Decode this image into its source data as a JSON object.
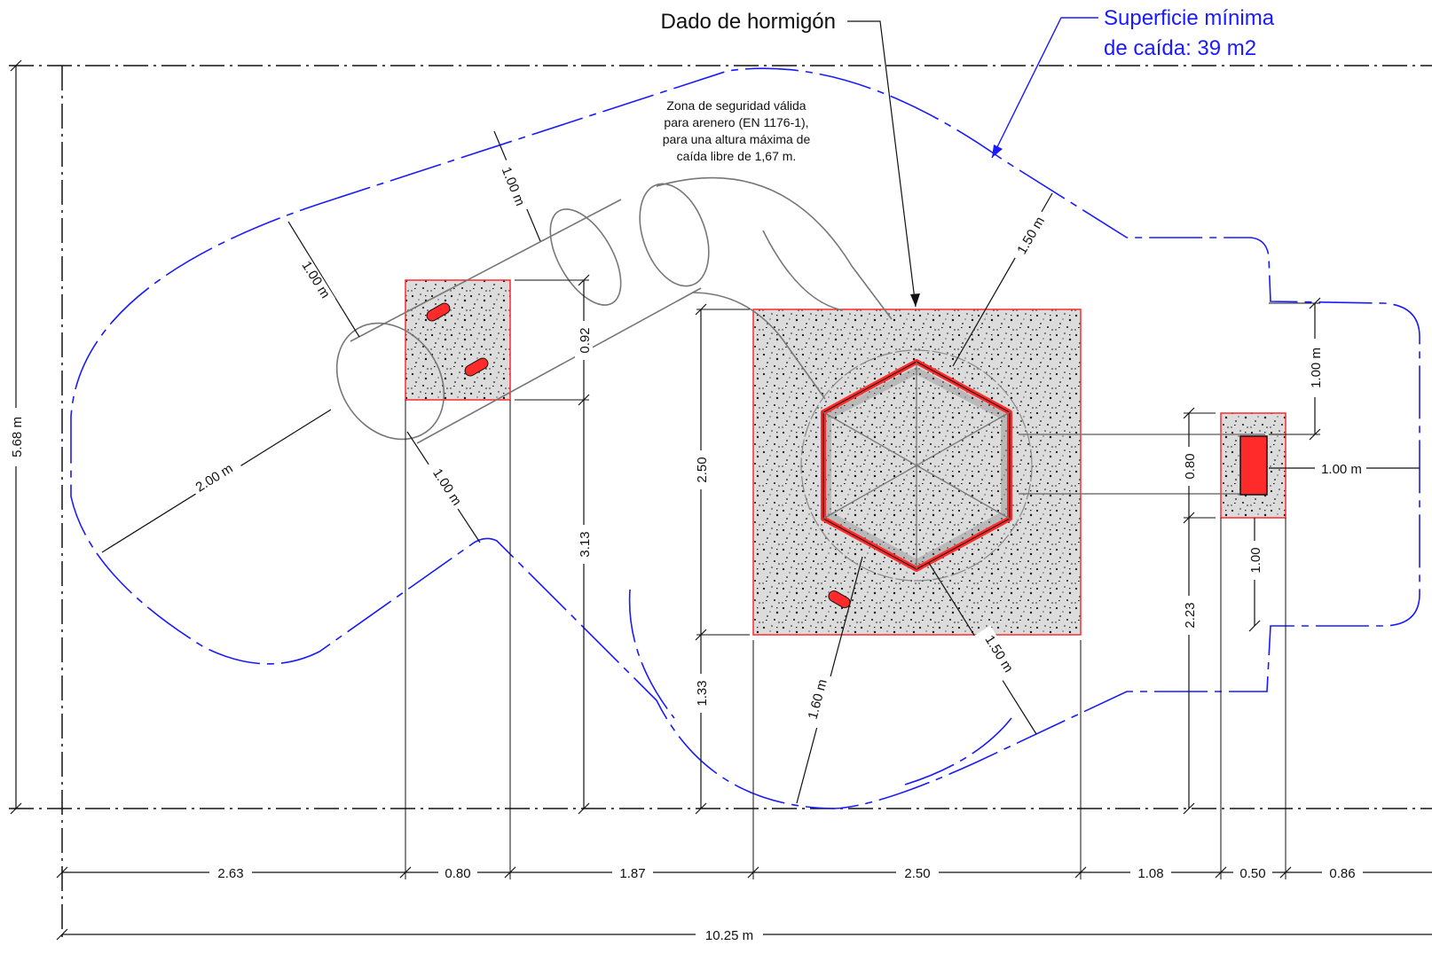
{
  "callouts": {
    "concrete_base": "Dado de hormigón",
    "fall_surface_line1": "Superficie mínima",
    "fall_surface_line2": "de caída: 39 m2"
  },
  "note": {
    "line1": "Zona de seguridad válida",
    "line2": "para arenero (EN 1176-1),",
    "line3": "para una altura máxima de",
    "line4": "caída libre de 1,67 m."
  },
  "dims": {
    "overall_width": "10.25 m",
    "overall_height": "5.68 m",
    "seg_2_63": "2.63",
    "seg_0_80": "0.80",
    "seg_1_87": "1.87",
    "seg_2_50": "2.50",
    "seg_1_08": "1.08",
    "seg_0_50": "0.50",
    "seg_0_86": "0.86",
    "v_0_92": "0.92",
    "v_3_13": "3.13",
    "v_2_50": "2.50",
    "v_1_33": "1.33",
    "v_0_80": "0.80",
    "v_2_23": "2.23",
    "v_1_00": "1.00",
    "r_1_00_top": "1.00 m",
    "r_1_00_left": "1.00 m",
    "r_1_00_bottom": "1.00 m",
    "r_2_00": "2.00 m",
    "r_1_50_top": "1.50 m",
    "r_1_50_bottom": "1.50 m",
    "r_1_60": "1.60 m",
    "r_1_00_right_v": "1.00 m",
    "r_1_00_right_h": "1.00 m"
  },
  "colors": {
    "safety_line": "#1a1aff",
    "concrete_fill": "#dcdcdc",
    "concrete_border": "#ff2a2a",
    "post": "#ff2a2a",
    "equipment": "#777777"
  }
}
